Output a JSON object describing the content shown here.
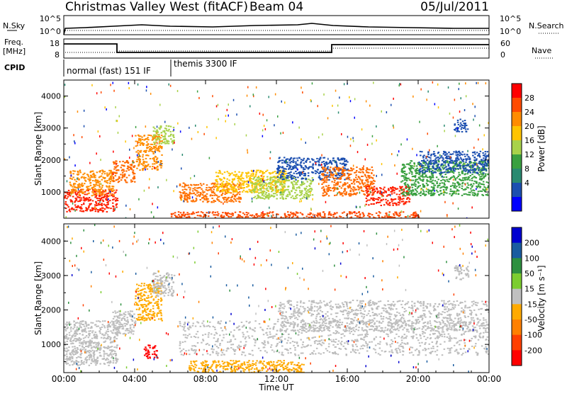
{
  "header": {
    "title": "Christmas Valley West (fitACF)",
    "beam": "Beam 04",
    "date": "05/Jul/2011"
  },
  "panels": {
    "nsky": {
      "label": "N.Sky",
      "right_label": "N.Search",
      "left_ticks": [
        "10^5",
        "10^0"
      ],
      "right_ticks": [
        "10^5",
        "10^0"
      ]
    },
    "freq": {
      "label_line1": "Freq.",
      "label_line2": "[MHz]",
      "right_label": "Nave",
      "left_ticks": [
        "18",
        "8"
      ],
      "right_ticks": [
        "60",
        "0"
      ]
    },
    "cpid": {
      "label": "CPID",
      "segments": [
        {
          "text": "normal (fast) 151 IF",
          "start_h": 0,
          "end_h": 6.1
        },
        {
          "text": "themis 3300 IF",
          "start_h": 6.1,
          "end_h": 24
        }
      ]
    }
  },
  "chart_data": [
    {
      "type": "heatmap",
      "name": "power",
      "ylabel": "Slant Range [km]",
      "yticks": [
        "4000",
        "3000",
        "2000",
        "1000"
      ],
      "ylim": [
        180,
        4500
      ],
      "colorbar": {
        "label": "Power [dB]",
        "ticks": [
          "28",
          "24",
          "20",
          "16",
          "12",
          "8",
          "4"
        ],
        "colors": [
          "#ff0000",
          "#ff4b00",
          "#ff8c00",
          "#ffc400",
          "#a8d24a",
          "#3aa040",
          "#2a8a70",
          "#1c4fb0",
          "#0000ff"
        ]
      },
      "regions": [
        {
          "t": [
            0.0,
            3.0
          ],
          "r": [
            400,
            1100
          ],
          "color": "#ff2000"
        },
        {
          "t": [
            0.3,
            2.8
          ],
          "r": [
            900,
            1700
          ],
          "color": "#ff8c00"
        },
        {
          "t": [
            2.7,
            4.0
          ],
          "r": [
            1300,
            2000
          ],
          "color": "#ff6a00"
        },
        {
          "t": [
            4.0,
            5.5
          ],
          "r": [
            1700,
            2800
          ],
          "color": "#ff8c00"
        },
        {
          "t": [
            5.0,
            6.2
          ],
          "r": [
            2500,
            3100
          ],
          "color": "#a8d24a"
        },
        {
          "t": [
            6.5,
            10.0
          ],
          "r": [
            700,
            1300
          ],
          "color": "#ff7000"
        },
        {
          "t": [
            8.5,
            12.5
          ],
          "r": [
            1000,
            1700
          ],
          "color": "#ffc400"
        },
        {
          "t": [
            10.5,
            14.0
          ],
          "r": [
            800,
            1500
          ],
          "color": "#a8d24a"
        },
        {
          "t": [
            12.0,
            16.0
          ],
          "r": [
            1400,
            2100
          ],
          "color": "#1c4fb0"
        },
        {
          "t": [
            14.5,
            17.5
          ],
          "r": [
            900,
            1800
          ],
          "color": "#ff6a00"
        },
        {
          "t": [
            17.0,
            19.5
          ],
          "r": [
            600,
            1200
          ],
          "color": "#ff2000"
        },
        {
          "t": [
            19.0,
            24.0
          ],
          "r": [
            900,
            2000
          ],
          "color": "#3aa040"
        },
        {
          "t": [
            20.0,
            24.0
          ],
          "r": [
            1600,
            2300
          ],
          "color": "#1c4fb0"
        },
        {
          "t": [
            22.0,
            22.8
          ],
          "r": [
            2900,
            3300
          ],
          "color": "#1c4fb0"
        },
        {
          "t": [
            6.0,
            20.0
          ],
          "r": [
            200,
            400
          ],
          "color": "#ff4b00"
        }
      ]
    },
    {
      "type": "heatmap",
      "name": "velocity",
      "ylabel": "Slant Range [km]",
      "yticks": [
        "4000",
        "3000",
        "2000",
        "1000"
      ],
      "ylim": [
        180,
        4500
      ],
      "colorbar": {
        "label": "Velocity [m s⁻¹]",
        "ticks": [
          "200",
          "100",
          "50",
          "15",
          "-15",
          "-50",
          "-100",
          "-200"
        ],
        "colors": [
          "#0000d0",
          "#1a5ca0",
          "#2e9040",
          "#7ccd30",
          "#c0c0c0",
          "#ffaa00",
          "#ff8000",
          "#ff4000",
          "#ff0000"
        ]
      },
      "regions": [
        {
          "t": [
            0.0,
            3.0
          ],
          "r": [
            400,
            1700
          ],
          "color": "#bdbdbd"
        },
        {
          "t": [
            2.7,
            4.0
          ],
          "r": [
            1300,
            2000
          ],
          "color": "#bdbdbd"
        },
        {
          "t": [
            4.0,
            5.5
          ],
          "r": [
            1700,
            2800
          ],
          "color": "#ffaa00"
        },
        {
          "t": [
            5.0,
            6.2
          ],
          "r": [
            2400,
            3100
          ],
          "color": "#bdbdbd"
        },
        {
          "t": [
            4.5,
            5.3
          ],
          "r": [
            600,
            1000
          ],
          "color": "#ff0000"
        },
        {
          "t": [
            6.5,
            24.0
          ],
          "r": [
            700,
            1700
          ],
          "color": "#bdbdbd"
        },
        {
          "t": [
            12.0,
            24.0
          ],
          "r": [
            1400,
            2300
          ],
          "color": "#bdbdbd"
        },
        {
          "t": [
            7.0,
            13.5
          ],
          "r": [
            200,
            550
          ],
          "color": "#ffaa00"
        },
        {
          "t": [
            22.0,
            22.8
          ],
          "r": [
            2900,
            3300
          ],
          "color": "#bdbdbd"
        }
      ]
    }
  ],
  "xaxis": {
    "label": "Time UT",
    "ticks": [
      "00:00",
      "04:00",
      "08:00",
      "12:00",
      "16:00",
      "20:00",
      "00:00"
    ],
    "xlim_hours": [
      0,
      24
    ]
  }
}
